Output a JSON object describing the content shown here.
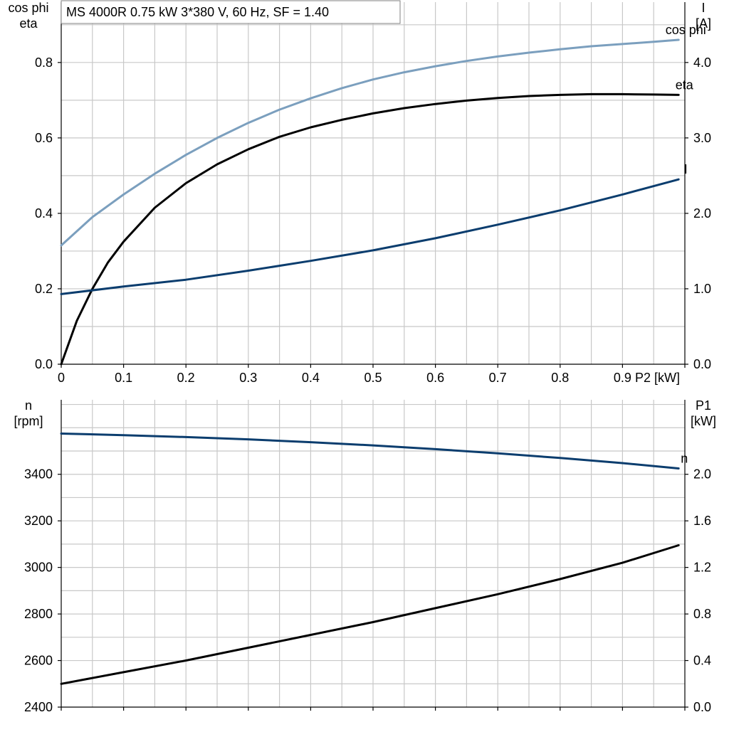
{
  "title": "MS 4000R   0.75 kW   3*380 V, 60 Hz, SF = 1.40",
  "colors": {
    "cosphi": "#7b9fbe",
    "eta": "#000000",
    "current": "#0b3d6e",
    "speed": "#0b3d6e",
    "p1": "#000000",
    "grid": "#c8c8c8"
  },
  "chart_data": [
    {
      "type": "line",
      "x_label": "P2 [kW]",
      "x_ticks": [
        "0",
        "0.1",
        "0.2",
        "0.3",
        "0.4",
        "0.5",
        "0.6",
        "0.7",
        "0.8",
        "0.9"
      ],
      "xlim": [
        0,
        1.0
      ],
      "left_axis_label": [
        "cos phi",
        "eta"
      ],
      "left_ticks": [
        "0.0",
        "0.2",
        "0.4",
        "0.6",
        "0.8"
      ],
      "ylim_left": [
        0,
        0.96
      ],
      "right_axis_label": [
        "I",
        "[A]"
      ],
      "right_ticks": [
        "0.0",
        "1.0",
        "2.0",
        "3.0",
        "4.0"
      ],
      "ylim_right": [
        0,
        4.8
      ],
      "grid": true,
      "series": [
        {
          "name": "cos phi",
          "axis": "left",
          "x": [
            0,
            0.05,
            0.1,
            0.15,
            0.2,
            0.25,
            0.3,
            0.35,
            0.4,
            0.45,
            0.5,
            0.55,
            0.6,
            0.65,
            0.7,
            0.75,
            0.8,
            0.85,
            0.9,
            0.95,
            0.99
          ],
          "y": [
            0.315,
            0.39,
            0.45,
            0.505,
            0.555,
            0.6,
            0.64,
            0.675,
            0.705,
            0.732,
            0.755,
            0.774,
            0.79,
            0.804,
            0.816,
            0.826,
            0.835,
            0.843,
            0.849,
            0.855,
            0.86
          ]
        },
        {
          "name": "eta",
          "axis": "left",
          "x": [
            0,
            0.025,
            0.05,
            0.075,
            0.1,
            0.15,
            0.2,
            0.25,
            0.3,
            0.35,
            0.4,
            0.45,
            0.5,
            0.55,
            0.6,
            0.65,
            0.7,
            0.75,
            0.8,
            0.85,
            0.9,
            0.95,
            0.99
          ],
          "y": [
            0.0,
            0.115,
            0.2,
            0.27,
            0.325,
            0.415,
            0.48,
            0.53,
            0.57,
            0.603,
            0.628,
            0.648,
            0.665,
            0.679,
            0.69,
            0.699,
            0.706,
            0.711,
            0.714,
            0.716,
            0.716,
            0.715,
            0.714
          ]
        },
        {
          "name": "I",
          "axis": "right",
          "x": [
            0,
            0.1,
            0.2,
            0.3,
            0.4,
            0.5,
            0.6,
            0.7,
            0.8,
            0.9,
            0.99
          ],
          "y": [
            0.93,
            1.03,
            1.12,
            1.24,
            1.37,
            1.51,
            1.67,
            1.85,
            2.04,
            2.25,
            2.45
          ]
        }
      ]
    },
    {
      "type": "line",
      "xlim": [
        0,
        1.0
      ],
      "left_axis_label": [
        "n",
        "[rpm]"
      ],
      "left_ticks": [
        "2400",
        "2600",
        "2800",
        "3000",
        "3200",
        "3400"
      ],
      "ylim_left": [
        2400,
        3720
      ],
      "right_axis_label": [
        "P1",
        "[kW]"
      ],
      "right_ticks": [
        "0.0",
        "0.4",
        "0.8",
        "1.2",
        "1.6",
        "2.0"
      ],
      "ylim_right": [
        0,
        2.64
      ],
      "grid": true,
      "series": [
        {
          "name": "n",
          "axis": "left",
          "x": [
            0,
            0.1,
            0.2,
            0.3,
            0.4,
            0.5,
            0.6,
            0.7,
            0.8,
            0.9,
            0.99
          ],
          "y": [
            3575,
            3568,
            3560,
            3550,
            3538,
            3524,
            3508,
            3490,
            3470,
            3448,
            3425
          ]
        },
        {
          "name": "P1",
          "axis": "right",
          "x": [
            0,
            0.1,
            0.2,
            0.3,
            0.4,
            0.5,
            0.6,
            0.7,
            0.8,
            0.9,
            0.99
          ],
          "y": [
            0.2,
            0.3,
            0.4,
            0.51,
            0.62,
            0.73,
            0.85,
            0.97,
            1.1,
            1.24,
            1.39
          ]
        }
      ]
    }
  ]
}
